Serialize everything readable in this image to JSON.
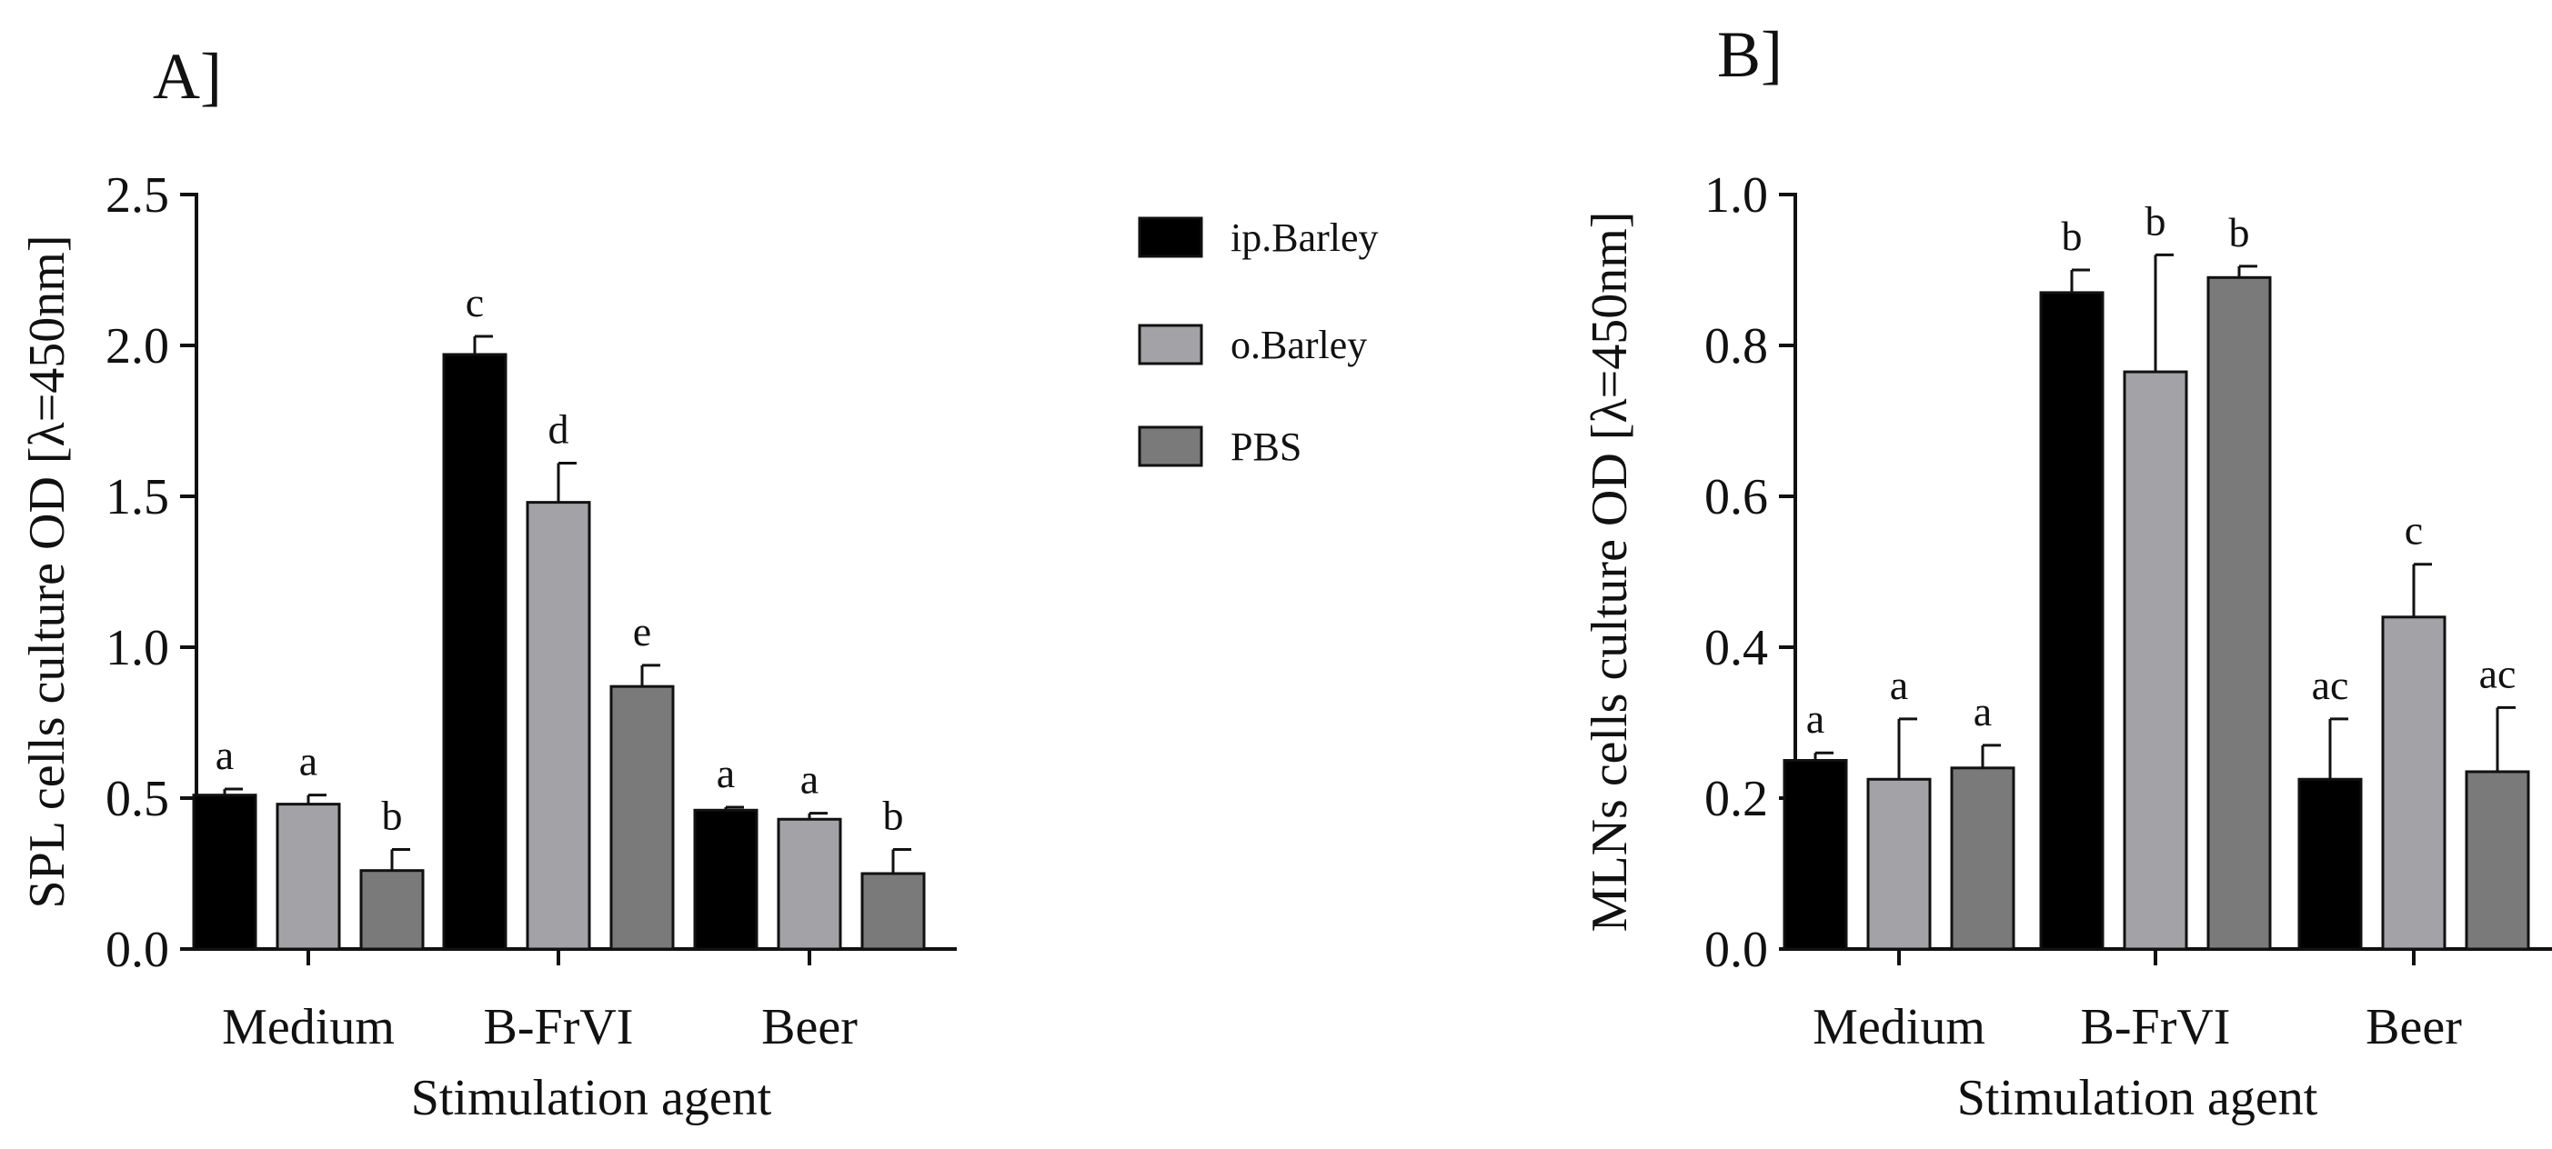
{
  "chart_data": [
    {
      "type": "bar",
      "panel": "A]",
      "title": "",
      "xlabel": "Stimulation agent",
      "ylabel": "SPL cells culture OD [λ=450nm]",
      "ylim": [
        0,
        2.5
      ],
      "yticks": [
        "0.0",
        "0.5",
        "1.0",
        "1.5",
        "2.0",
        "2.5"
      ],
      "yticks_values": [
        0,
        0.5,
        1.0,
        1.5,
        2.0,
        2.5
      ],
      "categories": [
        "Medium",
        "B-FrVI",
        "Beer"
      ],
      "series": [
        {
          "name": "ip.Barley",
          "color": "#000000",
          "values": [
            0.51,
            1.97,
            0.46
          ],
          "errors": [
            0.02,
            0.06,
            0.01
          ],
          "labels": [
            "a",
            "c",
            "a"
          ]
        },
        {
          "name": "o.Barley",
          "color": "#a3a3a7",
          "values": [
            0.48,
            1.48,
            0.43
          ],
          "errors": [
            0.03,
            0.13,
            0.02
          ],
          "labels": [
            "a",
            "d",
            "a"
          ]
        },
        {
          "name": "PBS",
          "color": "#7a7a7a",
          "values": [
            0.26,
            0.87,
            0.25
          ],
          "errors": [
            0.07,
            0.07,
            0.08
          ],
          "labels": [
            "b",
            "e",
            "b"
          ]
        }
      ],
      "legend": "right"
    },
    {
      "type": "bar",
      "panel": "B]",
      "title": "",
      "xlabel": "Stimulation agent",
      "ylabel": "MLNs cells culture OD [λ=450nm]",
      "ylim": [
        0,
        1.0
      ],
      "yticks": [
        "0.0",
        "0.2",
        "0.4",
        "0.6",
        "0.8",
        "1.0"
      ],
      "yticks_values": [
        0,
        0.2,
        0.4,
        0.6,
        0.8,
        1.0
      ],
      "categories": [
        "Medium",
        "B-FrVI",
        "Beer"
      ],
      "series": [
        {
          "name": "ip.Barley",
          "color": "#000000",
          "values": [
            0.25,
            0.87,
            0.225
          ],
          "errors": [
            0.01,
            0.03,
            0.08
          ],
          "labels": [
            "a",
            "b",
            "ac"
          ]
        },
        {
          "name": "o.Barley",
          "color": "#a3a3a7",
          "values": [
            0.225,
            0.765,
            0.44
          ],
          "errors": [
            0.08,
            0.155,
            0.07
          ],
          "labels": [
            "a",
            "b",
            "c"
          ]
        },
        {
          "name": "PBS",
          "color": "#7a7a7a",
          "values": [
            0.24,
            0.89,
            0.235
          ],
          "errors": [
            0.03,
            0.015,
            0.085
          ],
          "labels": [
            "a",
            "b",
            "ac"
          ]
        }
      ]
    }
  ]
}
